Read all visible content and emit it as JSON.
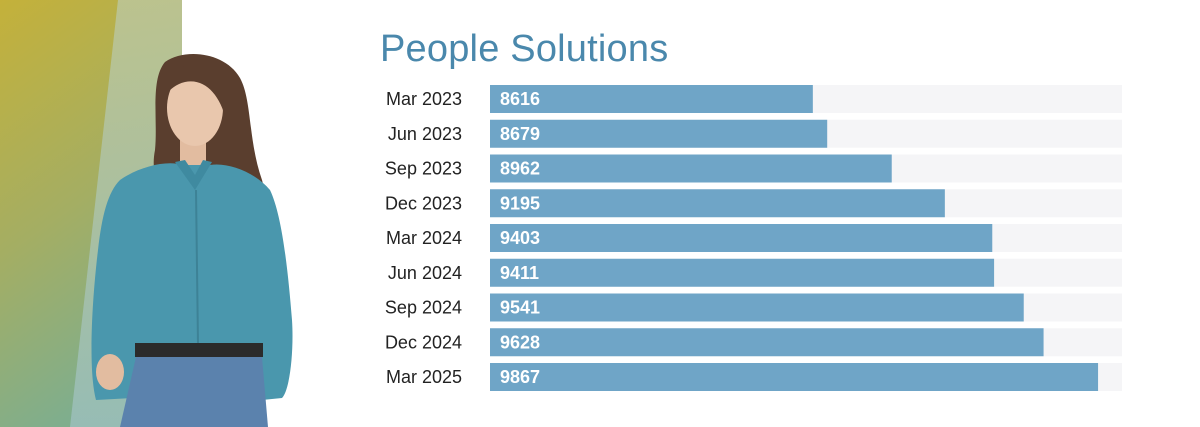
{
  "colors": {
    "accent": "#4a88ac",
    "bar": "#6fa5c7",
    "track": "#f5f5f7",
    "panel_top": "#c4b13a",
    "panel_bottom": "#7fae8d",
    "shirt": "#4a97ad",
    "jeans": "#5b82ad",
    "hair": "#5a3e2e",
    "skin": "#e9c7ad"
  },
  "figure": {
    "photo_icon": "person-photo-icon"
  },
  "chart_data": {
    "type": "bar",
    "orientation": "horizontal",
    "title": "People Solutions",
    "categories": [
      "Mar 2023",
      "Jun 2023",
      "Sep 2023",
      "Dec 2023",
      "Mar 2024",
      "Jun 2024",
      "Sep 2024",
      "Dec 2024",
      "Mar 2025"
    ],
    "values": [
      8616,
      8679,
      8962,
      9195,
      9403,
      9411,
      9541,
      9628,
      9867
    ],
    "xlim": [
      7200,
      9972
    ],
    "grid": false,
    "legend": "none"
  }
}
